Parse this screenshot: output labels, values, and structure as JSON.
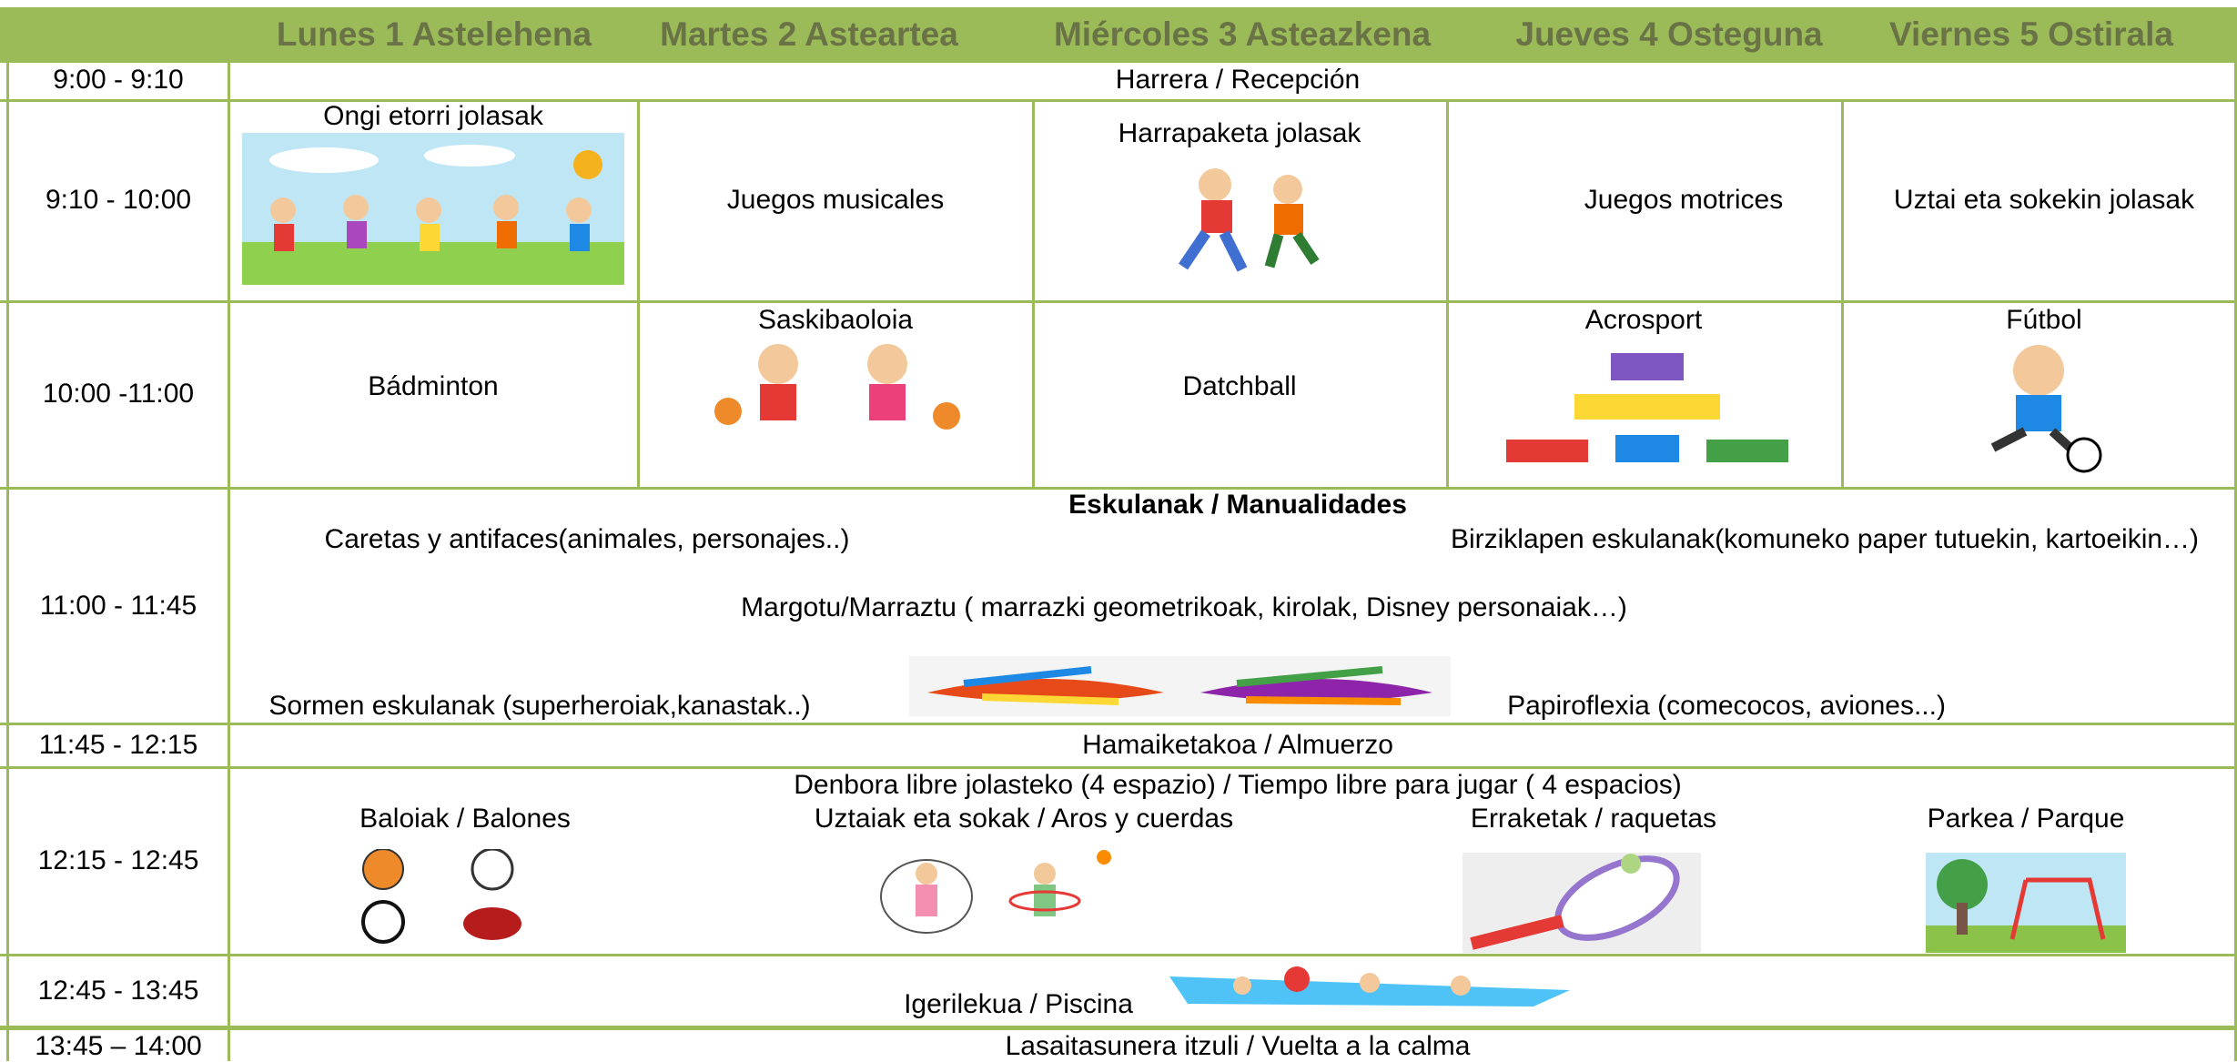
{
  "header": {
    "days": [
      "Lunes 1 Astelehena",
      "Martes 2 Asteartea",
      "Miércoles 3 Asteazkena",
      "Jueves 4 Osteguna",
      "Viernes 5 Ostirala"
    ]
  },
  "rows": [
    {
      "time": "9:00 - 9:10",
      "text": "Harrera / Recepción"
    },
    {
      "time": "9:10 - 10:00",
      "cells": [
        "Ongi etorri jolasak",
        "Juegos musicales",
        "Harrapaketa jolasak",
        "Juegos motrices",
        "Uztai eta sokekin jolasak"
      ]
    },
    {
      "time": "10:00 -11:00",
      "cells": [
        "Bádminton",
        "Saskibaoloia",
        "Datchball",
        "Acrosport",
        "Fútbol"
      ]
    },
    {
      "time": "11:00 - 11:45",
      "title": "Eskulanak / Manualidades",
      "items": [
        "Caretas y antifaces(animales, personajes..)",
        "Birziklapen eskulanak(komuneko paper tutuekin, kartoeikin…)",
        "Margotu/Marraztu ( marrazki geometrikoak, kirolak, Disney personaiak…)",
        "Sormen eskulanak (superheroiak,kanastak..)",
        "Papiroflexia (comecocos, aviones...)"
      ]
    },
    {
      "time": "11:45 - 12:15",
      "text": "Hamaiketakoa / Almuerzo"
    },
    {
      "time": "12:15 - 12:45",
      "title": "Denbora libre jolasteko (4 espazio) / Tiempo libre para jugar ( 4 espacios)",
      "items": [
        "Baloiak / Balones",
        "Uztaiak eta sokak  / Aros y cuerdas",
        "Erraketak / raquetas",
        "Parkea / Parque"
      ]
    },
    {
      "time": "12:45 - 13:45",
      "text": "Igerilekua / Piscina"
    },
    {
      "time": "13:45 – 14:00",
      "text": "Lasaitasunera itzuli / Vuelta a la calma"
    }
  ]
}
